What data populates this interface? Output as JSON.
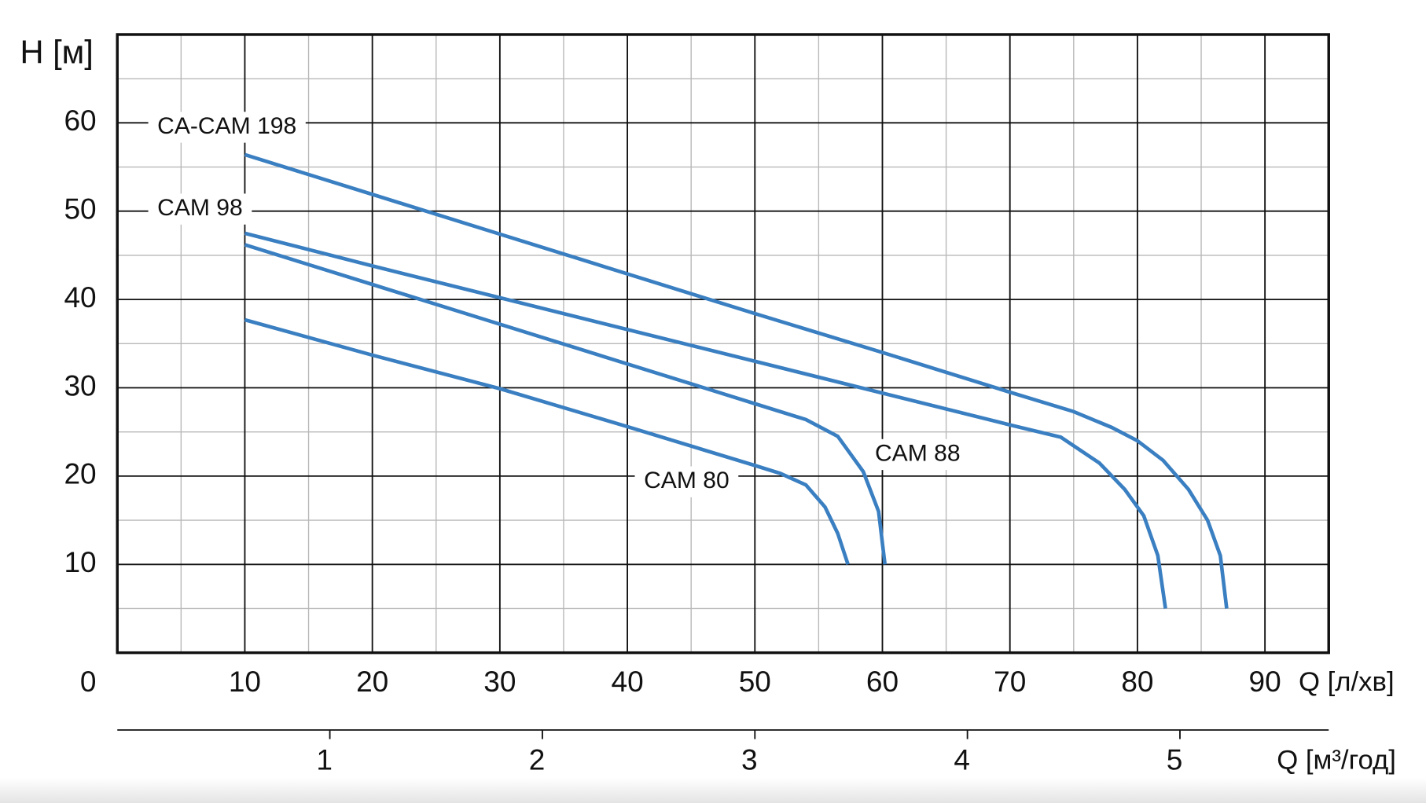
{
  "chart_data": {
    "type": "line",
    "y_label": "H [м]",
    "x_label": "Q [л/хв]",
    "x2_label": "Q [м³/год]",
    "xlim": [
      0,
      95
    ],
    "ylim": [
      0,
      70
    ],
    "xticks": [
      0,
      10,
      20,
      30,
      40,
      50,
      60,
      70,
      80,
      90
    ],
    "yticks": [
      10,
      20,
      30,
      40,
      50,
      60
    ],
    "x_minor_ticks": [
      5,
      15,
      25,
      35,
      45,
      55,
      65,
      75,
      85
    ],
    "y_minor_ticks": [
      5,
      15,
      25,
      35,
      45,
      55,
      65
    ],
    "x2lim": [
      0,
      5.7
    ],
    "x2ticks": [
      1,
      2,
      3,
      4,
      5
    ],
    "grid": true,
    "series": [
      {
        "name": "CA-CAM 198",
        "color": "#3a7fc1",
        "x": [
          10,
          20,
          30,
          40,
          50,
          60,
          70,
          75,
          78,
          80,
          82,
          84,
          85.5,
          86.5,
          87
        ],
        "values": [
          56.4,
          51.9,
          47.4,
          42.9,
          38.4,
          34.0,
          29.5,
          27.3,
          25.5,
          24.0,
          21.8,
          18.5,
          15.0,
          11,
          5
        ]
      },
      {
        "name": "CAM 98",
        "color": "#3a7fc1",
        "x": [
          10,
          20,
          30,
          40,
          50,
          60,
          70,
          74,
          77,
          79,
          80.5,
          81.6,
          82.2
        ],
        "values": [
          47.5,
          43.8,
          40.2,
          36.6,
          33.0,
          29.4,
          25.8,
          24.4,
          21.5,
          18.5,
          15.5,
          11,
          5
        ]
      },
      {
        "name": "CAM 88",
        "color": "#3a7fc1",
        "x": [
          10,
          20,
          30,
          40,
          50,
          54,
          56.5,
          58.5,
          59.7,
          60.2
        ],
        "values": [
          46.2,
          41.7,
          37.2,
          32.7,
          28.2,
          26.4,
          24.5,
          20.5,
          16,
          10
        ]
      },
      {
        "name": "CAM 80",
        "color": "#3a7fc1",
        "x": [
          10,
          20,
          30,
          40,
          50,
          52,
          54,
          55.5,
          56.5,
          57.3
        ],
        "values": [
          37.7,
          33.7,
          29.9,
          25.6,
          21.2,
          20.3,
          19.0,
          16.5,
          13.5,
          10
        ]
      }
    ]
  }
}
